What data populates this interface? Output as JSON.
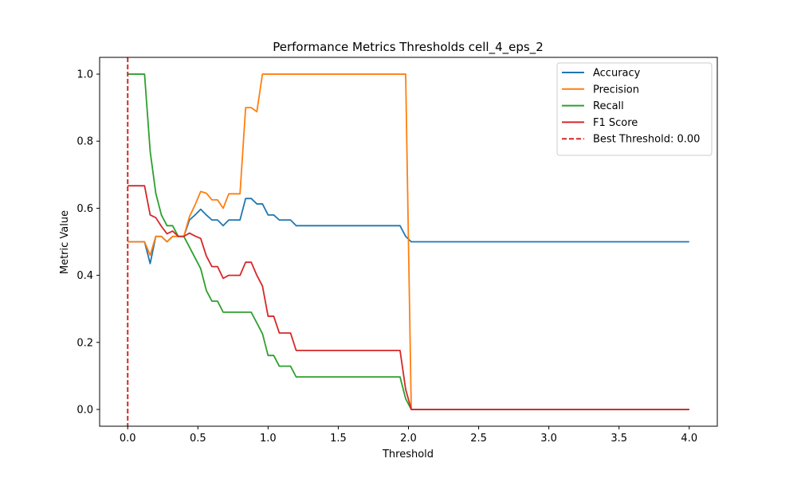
{
  "chart_data": {
    "type": "line",
    "title": "Performance Metrics Thresholds cell_4_eps_2",
    "xlabel": "Threshold",
    "ylabel": "Metric Value",
    "xlim": [
      -0.2,
      4.2
    ],
    "ylim": [
      -0.05,
      1.05
    ],
    "xticks": [
      0.0,
      0.5,
      1.0,
      1.5,
      2.0,
      2.5,
      3.0,
      3.5,
      4.0
    ],
    "xtick_labels": [
      "0.0",
      "0.5",
      "1.0",
      "1.5",
      "2.0",
      "2.5",
      "3.0",
      "3.5",
      "4.0"
    ],
    "yticks": [
      0.0,
      0.2,
      0.4,
      0.6,
      0.8,
      1.0
    ],
    "ytick_labels": [
      "0.0",
      "0.2",
      "0.4",
      "0.6",
      "0.8",
      "1.0"
    ],
    "grid": false,
    "legend_position": "top-right",
    "series": [
      {
        "name": "Accuracy",
        "color": "#1f77b4",
        "style": "solid",
        "points": [
          [
            0.0,
            0.5
          ],
          [
            0.04,
            0.5
          ],
          [
            0.08,
            0.5
          ],
          [
            0.12,
            0.5
          ],
          [
            0.16,
            0.435
          ],
          [
            0.2,
            0.516
          ],
          [
            0.24,
            0.516
          ],
          [
            0.28,
            0.5
          ],
          [
            0.32,
            0.516
          ],
          [
            0.36,
            0.516
          ],
          [
            0.4,
            0.516
          ],
          [
            0.44,
            0.565
          ],
          [
            0.48,
            0.58
          ],
          [
            0.52,
            0.597
          ],
          [
            0.56,
            0.58
          ],
          [
            0.6,
            0.565
          ],
          [
            0.64,
            0.565
          ],
          [
            0.68,
            0.548
          ],
          [
            0.72,
            0.565
          ],
          [
            0.76,
            0.565
          ],
          [
            0.8,
            0.565
          ],
          [
            0.84,
            0.629
          ],
          [
            0.88,
            0.629
          ],
          [
            0.92,
            0.613
          ],
          [
            0.96,
            0.613
          ],
          [
            1.0,
            0.58
          ],
          [
            1.04,
            0.58
          ],
          [
            1.08,
            0.565
          ],
          [
            1.12,
            0.565
          ],
          [
            1.16,
            0.565
          ],
          [
            1.2,
            0.548
          ],
          [
            1.94,
            0.548
          ],
          [
            1.98,
            0.516
          ],
          [
            2.02,
            0.5
          ],
          [
            4.0,
            0.5
          ]
        ]
      },
      {
        "name": "Precision",
        "color": "#ff7f0e",
        "style": "solid",
        "points": [
          [
            0.0,
            0.5
          ],
          [
            0.04,
            0.5
          ],
          [
            0.08,
            0.5
          ],
          [
            0.12,
            0.5
          ],
          [
            0.16,
            0.46
          ],
          [
            0.2,
            0.516
          ],
          [
            0.24,
            0.516
          ],
          [
            0.28,
            0.5
          ],
          [
            0.32,
            0.516
          ],
          [
            0.36,
            0.516
          ],
          [
            0.4,
            0.516
          ],
          [
            0.44,
            0.575
          ],
          [
            0.48,
            0.61
          ],
          [
            0.52,
            0.65
          ],
          [
            0.56,
            0.645
          ],
          [
            0.6,
            0.625
          ],
          [
            0.64,
            0.625
          ],
          [
            0.68,
            0.6
          ],
          [
            0.72,
            0.643
          ],
          [
            0.76,
            0.643
          ],
          [
            0.8,
            0.643
          ],
          [
            0.84,
            0.9
          ],
          [
            0.88,
            0.9
          ],
          [
            0.92,
            0.888
          ],
          [
            0.96,
            1.0
          ],
          [
            1.94,
            1.0
          ],
          [
            1.98,
            1.0
          ],
          [
            2.02,
            0.0
          ],
          [
            4.0,
            0.0
          ]
        ]
      },
      {
        "name": "Recall",
        "color": "#2ca02c",
        "style": "solid",
        "points": [
          [
            0.0,
            1.0
          ],
          [
            0.04,
            1.0
          ],
          [
            0.08,
            1.0
          ],
          [
            0.12,
            1.0
          ],
          [
            0.16,
            0.77
          ],
          [
            0.2,
            0.645
          ],
          [
            0.24,
            0.58
          ],
          [
            0.28,
            0.548
          ],
          [
            0.32,
            0.548
          ],
          [
            0.36,
            0.516
          ],
          [
            0.4,
            0.516
          ],
          [
            0.44,
            0.484
          ],
          [
            0.48,
            0.452
          ],
          [
            0.52,
            0.42
          ],
          [
            0.56,
            0.355
          ],
          [
            0.6,
            0.323
          ],
          [
            0.64,
            0.323
          ],
          [
            0.68,
            0.29
          ],
          [
            0.72,
            0.29
          ],
          [
            0.76,
            0.29
          ],
          [
            0.8,
            0.29
          ],
          [
            0.84,
            0.29
          ],
          [
            0.88,
            0.29
          ],
          [
            0.92,
            0.258
          ],
          [
            0.96,
            0.226
          ],
          [
            1.0,
            0.161
          ],
          [
            1.04,
            0.161
          ],
          [
            1.08,
            0.129
          ],
          [
            1.12,
            0.129
          ],
          [
            1.16,
            0.129
          ],
          [
            1.2,
            0.097
          ],
          [
            1.94,
            0.097
          ],
          [
            1.98,
            0.032
          ],
          [
            2.02,
            0.0
          ],
          [
            4.0,
            0.0
          ]
        ]
      },
      {
        "name": "F1 Score",
        "color": "#d62728",
        "style": "solid",
        "points": [
          [
            0.0,
            0.667
          ],
          [
            0.04,
            0.667
          ],
          [
            0.08,
            0.667
          ],
          [
            0.12,
            0.667
          ],
          [
            0.16,
            0.58
          ],
          [
            0.2,
            0.572
          ],
          [
            0.24,
            0.546
          ],
          [
            0.28,
            0.524
          ],
          [
            0.32,
            0.532
          ],
          [
            0.36,
            0.516
          ],
          [
            0.4,
            0.516
          ],
          [
            0.44,
            0.526
          ],
          [
            0.48,
            0.517
          ],
          [
            0.52,
            0.51
          ],
          [
            0.56,
            0.458
          ],
          [
            0.6,
            0.426
          ],
          [
            0.64,
            0.426
          ],
          [
            0.68,
            0.391
          ],
          [
            0.72,
            0.4
          ],
          [
            0.76,
            0.4
          ],
          [
            0.8,
            0.4
          ],
          [
            0.84,
            0.439
          ],
          [
            0.88,
            0.439
          ],
          [
            0.92,
            0.4
          ],
          [
            0.96,
            0.368
          ],
          [
            1.0,
            0.278
          ],
          [
            1.04,
            0.278
          ],
          [
            1.08,
            0.228
          ],
          [
            1.12,
            0.228
          ],
          [
            1.16,
            0.228
          ],
          [
            1.2,
            0.176
          ],
          [
            1.94,
            0.176
          ],
          [
            1.98,
            0.06
          ],
          [
            2.02,
            0.0
          ],
          [
            4.0,
            0.0
          ]
        ]
      },
      {
        "name": "Best Threshold: 0.00",
        "color": "#d62728",
        "style": "dashed",
        "vline_x": 0.0
      }
    ]
  }
}
